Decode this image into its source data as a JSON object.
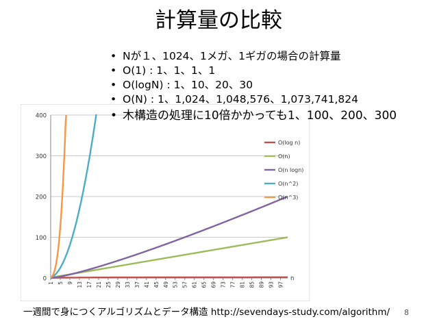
{
  "slide": {
    "title": "計算量の比較",
    "bullets": [
      "Nが１、1024、1メガ、1ギガの場合の計算量",
      "O(1) : 1、1、1、1",
      "O(logN) : 1、10、20、30",
      "O(N) : 1、1,024、1,048,576、1,073,741,824",
      "木構造の処理に10倍かかっても1、100、200、300"
    ],
    "footer": "一週間で身につくアルゴリズムとデータ構造 http://sevendays-study.com/algorithm/",
    "page_number": "8"
  },
  "chart_data": {
    "type": "line",
    "title": "",
    "xlabel": "n",
    "ylabel": "",
    "ylim": [
      0,
      400
    ],
    "yticks": [
      0,
      100,
      200,
      300,
      400
    ],
    "xticks": [
      1,
      5,
      9,
      13,
      17,
      21,
      25,
      29,
      33,
      37,
      41,
      45,
      49,
      53,
      57,
      61,
      65,
      69,
      73,
      77,
      81,
      85,
      89,
      93,
      97
    ],
    "x_range": [
      1,
      100
    ],
    "grid": "horizontal",
    "legend": "right",
    "series": [
      {
        "name": "O(log n)",
        "color": "#C0504D",
        "values_formula": "log n",
        "points": [
          [
            1,
            0
          ],
          [
            10,
            1
          ],
          [
            25,
            1.4
          ],
          [
            50,
            1.7
          ],
          [
            75,
            1.9
          ],
          [
            100,
            2
          ]
        ]
      },
      {
        "name": "O(n)",
        "color": "#9BBB59",
        "values_formula": "n",
        "points": [
          [
            1,
            1
          ],
          [
            25,
            25
          ],
          [
            50,
            50
          ],
          [
            75,
            75
          ],
          [
            100,
            100
          ]
        ]
      },
      {
        "name": "O(n logn)",
        "color": "#8064A2",
        "values_formula": "n log n",
        "points": [
          [
            1,
            0
          ],
          [
            10,
            10
          ],
          [
            25,
            35
          ],
          [
            50,
            85
          ],
          [
            75,
            141
          ],
          [
            100,
            200
          ]
        ]
      },
      {
        "name": "O(n^2)",
        "color": "#4BACC6",
        "values_formula": "n^2",
        "points": [
          [
            1,
            1
          ],
          [
            5,
            25
          ],
          [
            10,
            100
          ],
          [
            14,
            196
          ],
          [
            18,
            324
          ],
          [
            20,
            400
          ]
        ]
      },
      {
        "name": "O(n^3)",
        "color": "#F79646",
        "values_formula": "n^3",
        "points": [
          [
            1,
            1
          ],
          [
            3,
            27
          ],
          [
            4,
            64
          ],
          [
            5,
            125
          ],
          [
            6,
            216
          ],
          [
            7,
            343
          ],
          [
            7.37,
            400
          ]
        ]
      }
    ]
  }
}
